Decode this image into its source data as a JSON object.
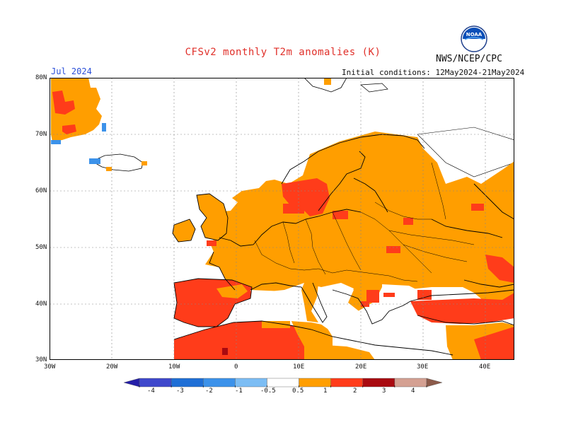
{
  "title": "CFSv2 monthly T2m anomalies (K)",
  "month": "Jul 2024",
  "initial_conditions": "Initial conditions: 12May2024-21May2024",
  "agency": "NWS/NCEP/CPC",
  "logo_text": "NOAA",
  "lat_labels": [
    "80N",
    "70N",
    "60N",
    "50N",
    "40N",
    "30N"
  ],
  "lon_labels": [
    "30W",
    "20W",
    "10W",
    "0",
    "10E",
    "20E",
    "30E",
    "40E"
  ],
  "colorbar": {
    "labels": [
      "-4",
      "-3",
      "-2",
      "-1",
      "-0.5",
      "0.5",
      "1",
      "2",
      "3",
      "4"
    ],
    "colors": [
      "#241ea8",
      "#3f48cc",
      "#1f6fd6",
      "#3c92ea",
      "#7cbdf4",
      "#ffffff",
      "#ff9e00",
      "#ff3c1a",
      "#a90a10",
      "#d4a092",
      "#8c5a4a"
    ]
  },
  "colors": {
    "orange": "#ff9e00",
    "red": "#ff3c1a",
    "darkred": "#a90a10",
    "blue": "#3c92ea",
    "title": "#e0302a",
    "month": "#2a4fd8"
  }
}
